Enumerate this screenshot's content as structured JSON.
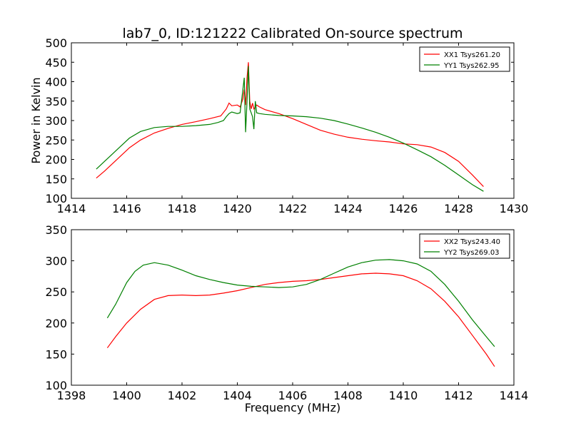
{
  "title": "lab7_0, ID:121222 Calibrated On-source spectrum",
  "chart_data": [
    {
      "type": "line",
      "ylabel": "Power in Kelvin",
      "xlabel": "",
      "xlim": [
        1414,
        1430
      ],
      "ylim": [
        100,
        500
      ],
      "xticks": [
        1414,
        1416,
        1418,
        1420,
        1422,
        1424,
        1426,
        1428,
        1430
      ],
      "yticks": [
        100,
        150,
        200,
        250,
        300,
        350,
        400,
        450,
        500
      ],
      "legend": "top-right",
      "series": [
        {
          "name": "XX1 Tsys261.20",
          "color": "#ff0000",
          "x": [
            1414.9,
            1415.2,
            1415.5,
            1415.8,
            1416.1,
            1416.5,
            1417.0,
            1417.5,
            1418.0,
            1418.5,
            1419.0,
            1419.4,
            1419.6,
            1419.7,
            1419.8,
            1420.0,
            1420.1,
            1420.2,
            1420.25,
            1420.3,
            1420.35,
            1420.4,
            1420.45,
            1420.5,
            1420.55,
            1420.6,
            1420.7,
            1420.8,
            1421.0,
            1421.5,
            1422.0,
            1422.5,
            1423.0,
            1423.5,
            1424.0,
            1424.5,
            1425.0,
            1425.5,
            1426.0,
            1426.5,
            1427.0,
            1427.5,
            1428.0,
            1428.5,
            1428.9
          ],
          "y": [
            152,
            170,
            190,
            210,
            230,
            250,
            268,
            280,
            290,
            297,
            305,
            312,
            330,
            345,
            338,
            340,
            335,
            355,
            380,
            340,
            410,
            450,
            350,
            330,
            345,
            330,
            340,
            335,
            328,
            318,
            305,
            290,
            275,
            265,
            257,
            252,
            248,
            245,
            240,
            238,
            232,
            218,
            195,
            160,
            130
          ]
        },
        {
          "name": "YY1 Tsys262.95",
          "color": "#008000",
          "x": [
            1414.9,
            1415.2,
            1415.5,
            1415.8,
            1416.1,
            1416.5,
            1417.0,
            1417.5,
            1418.0,
            1418.5,
            1419.0,
            1419.3,
            1419.5,
            1419.6,
            1419.7,
            1419.8,
            1420.0,
            1420.1,
            1420.2,
            1420.25,
            1420.3,
            1420.35,
            1420.4,
            1420.45,
            1420.5,
            1420.55,
            1420.6,
            1420.65,
            1420.7,
            1420.8,
            1421.0,
            1421.5,
            1422.0,
            1422.5,
            1423.0,
            1423.5,
            1424.0,
            1424.5,
            1425.0,
            1425.5,
            1426.0,
            1426.5,
            1427.0,
            1427.5,
            1428.0,
            1428.5,
            1428.9
          ],
          "y": [
            175,
            195,
            215,
            235,
            255,
            272,
            282,
            285,
            285,
            287,
            290,
            295,
            300,
            310,
            318,
            322,
            318,
            320,
            380,
            410,
            270,
            350,
            440,
            330,
            320,
            310,
            278,
            350,
            320,
            318,
            316,
            313,
            312,
            310,
            306,
            300,
            291,
            281,
            270,
            257,
            242,
            225,
            207,
            185,
            160,
            135,
            118
          ]
        }
      ]
    },
    {
      "type": "line",
      "xlabel": "Frequency (MHz)",
      "ylabel": "",
      "xlim": [
        1398,
        1414
      ],
      "ylim": [
        100,
        350
      ],
      "xticks": [
        1398,
        1400,
        1402,
        1404,
        1406,
        1408,
        1410,
        1412,
        1414
      ],
      "yticks": [
        100,
        150,
        200,
        250,
        300,
        350
      ],
      "legend": "top-right",
      "series": [
        {
          "name": "XX2 Tsys243.40",
          "color": "#ff0000",
          "x": [
            1399.3,
            1399.6,
            1400.0,
            1400.5,
            1401.0,
            1401.5,
            1402.0,
            1402.5,
            1403.0,
            1403.5,
            1404.0,
            1404.5,
            1405.0,
            1405.5,
            1406.0,
            1406.5,
            1407.0,
            1407.5,
            1408.0,
            1408.5,
            1409.0,
            1409.5,
            1410.0,
            1410.5,
            1411.0,
            1411.5,
            1412.0,
            1412.5,
            1413.0,
            1413.3
          ],
          "y": [
            160,
            178,
            200,
            222,
            238,
            244,
            245,
            244,
            245,
            248,
            252,
            257,
            262,
            265,
            267,
            268,
            270,
            273,
            276,
            279,
            280,
            279,
            276,
            268,
            255,
            235,
            210,
            180,
            150,
            130
          ]
        },
        {
          "name": "YY2 Tsys269.03",
          "color": "#008000",
          "x": [
            1399.3,
            1399.6,
            1400.0,
            1400.3,
            1400.6,
            1401.0,
            1401.5,
            1402.0,
            1402.5,
            1403.0,
            1403.5,
            1404.0,
            1404.5,
            1405.0,
            1405.5,
            1406.0,
            1406.5,
            1407.0,
            1407.5,
            1408.0,
            1408.5,
            1409.0,
            1409.5,
            1410.0,
            1410.5,
            1411.0,
            1411.5,
            1412.0,
            1412.5,
            1413.0,
            1413.3
          ],
          "y": [
            208,
            230,
            265,
            283,
            293,
            297,
            293,
            285,
            276,
            270,
            265,
            261,
            259,
            258,
            257,
            258,
            262,
            270,
            280,
            290,
            297,
            301,
            302,
            300,
            295,
            283,
            262,
            235,
            205,
            178,
            162
          ]
        }
      ]
    }
  ]
}
